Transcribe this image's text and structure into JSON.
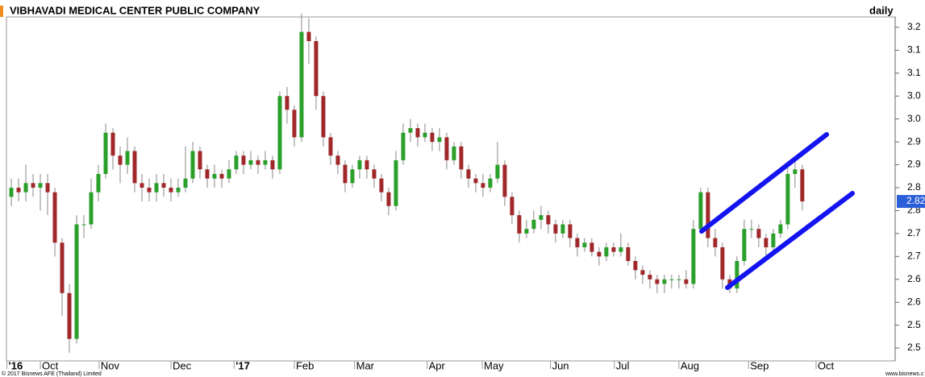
{
  "chart_data": {
    "type": "candlestick",
    "title": "VIBHAVADI MEDICAL CENTER PUBLIC COMPANY",
    "period": "daily",
    "footer_left": "© 2017 Bisnews AFE (Thailand) Limited",
    "footer_right": "www.bisnews.c",
    "last_price": 2.82,
    "up_color": "#2aa02a",
    "down_color": "#a0282a",
    "ylim": [
      2.472,
      3.228
    ],
    "yticks": [
      3.2,
      {
        "value": 3.15,
        "label": "3.1"
      },
      3.1,
      {
        "value": 3.05,
        "label": "3.0"
      },
      {
        "value": 3,
        "label": "3.0"
      },
      {
        "value": 2.95,
        "label": "2.9"
      },
      2.9,
      {
        "value": 2.85,
        "label": "2.8"
      },
      2.8,
      {
        "value": 2.75,
        "label": "2.7"
      },
      2.7,
      {
        "value": 2.65,
        "label": "2.6"
      },
      2.6,
      {
        "value": 2.55,
        "label": "2.5"
      },
      2.5
    ],
    "xlim": [
      -0.67,
      121.8
    ],
    "xticks": [
      {
        "value": -0.6,
        "label": "'16"
      },
      {
        "value": 4.0,
        "label": "Oct"
      },
      {
        "value": 12.1,
        "label": "Nov"
      },
      {
        "value": 22.0,
        "label": "Dec"
      },
      {
        "value": 30.7,
        "label": "'17"
      },
      {
        "value": 39.0,
        "label": "Feb"
      },
      {
        "value": 47.3,
        "label": "Mar"
      },
      {
        "value": 57.3,
        "label": "Apr"
      },
      {
        "value": 64.9,
        "label": "May"
      },
      {
        "value": 74.3,
        "label": "Jun"
      },
      {
        "value": 83.1,
        "label": "Jul"
      },
      {
        "value": 92.0,
        "label": "Aug"
      },
      {
        "value": 101.6,
        "label": "Sep"
      },
      {
        "value": 110.9,
        "label": "Oct"
      }
    ],
    "open": [
      2.83,
      2.85,
      2.84,
      2.86,
      2.85,
      2.86,
      2.84,
      2.73,
      2.62,
      2.52,
      2.77,
      2.77,
      2.84,
      2.88,
      2.97,
      2.92,
      2.9,
      2.93,
      2.86,
      2.85,
      2.84,
      2.86,
      2.85,
      2.84,
      2.85,
      2.87,
      2.93,
      2.89,
      2.87,
      2.88,
      2.87,
      2.89,
      2.92,
      2.9,
      2.91,
      2.9,
      2.91,
      2.89,
      3.05,
      3.02,
      2.96,
      3.19,
      3.17,
      3.05,
      2.96,
      2.92,
      2.9,
      2.86,
      2.89,
      2.91,
      2.89,
      2.87,
      2.84,
      2.81,
      2.91,
      2.97,
      2.98,
      2.96,
      2.97,
      2.95,
      2.96,
      2.91,
      2.94,
      2.89,
      2.87,
      2.86,
      2.85,
      2.87,
      2.9,
      2.83,
      2.79,
      2.75,
      2.76,
      2.78,
      2.79,
      2.77,
      2.75,
      2.77,
      2.74,
      2.72,
      2.73,
      2.71,
      2.7,
      2.72,
      2.71,
      2.72,
      2.69,
      2.67,
      2.66,
      2.65,
      2.64,
      2.65,
      2.65,
      2.65,
      2.64,
      2.76,
      2.84,
      2.74,
      2.72,
      2.65,
      2.63,
      2.69,
      2.76,
      2.76,
      2.74,
      2.72,
      2.75,
      2.77,
      2.88,
      2.89
    ],
    "high": [
      2.87,
      2.87,
      2.9,
      2.88,
      2.88,
      2.88,
      2.85,
      2.74,
      2.64,
      2.79,
      2.79,
      2.87,
      2.9,
      2.99,
      2.98,
      2.94,
      2.96,
      2.94,
      2.88,
      2.87,
      2.88,
      2.88,
      2.87,
      2.87,
      2.94,
      2.95,
      2.94,
      2.9,
      2.9,
      2.89,
      2.91,
      2.93,
      2.93,
      2.93,
      2.92,
      2.93,
      2.92,
      3.06,
      3.07,
      3.03,
      3.23,
      3.22,
      3.18,
      3.06,
      2.97,
      2.93,
      2.91,
      2.9,
      2.92,
      2.92,
      2.9,
      2.88,
      2.85,
      2.93,
      2.99,
      3.0,
      2.99,
      2.99,
      2.98,
      2.98,
      2.97,
      2.95,
      2.95,
      2.9,
      2.88,
      2.88,
      2.88,
      2.95,
      2.91,
      2.84,
      2.8,
      2.78,
      2.8,
      2.81,
      2.8,
      2.78,
      2.78,
      2.78,
      2.75,
      2.74,
      2.74,
      2.72,
      2.73,
      2.73,
      2.75,
      2.73,
      2.7,
      2.68,
      2.67,
      2.66,
      2.66,
      2.66,
      2.66,
      2.67,
      2.78,
      2.85,
      2.85,
      2.76,
      2.73,
      2.66,
      2.7,
      2.78,
      2.78,
      2.77,
      2.75,
      2.76,
      2.78,
      2.9,
      2.91,
      2.9
    ],
    "low": [
      2.81,
      2.82,
      2.82,
      2.83,
      2.8,
      2.79,
      2.7,
      2.57,
      2.49,
      2.51,
      2.74,
      2.76,
      2.82,
      2.87,
      2.89,
      2.86,
      2.88,
      2.84,
      2.82,
      2.82,
      2.82,
      2.83,
      2.82,
      2.83,
      2.84,
      2.86,
      2.87,
      2.85,
      2.85,
      2.85,
      2.86,
      2.88,
      2.88,
      2.89,
      2.88,
      2.89,
      2.87,
      2.88,
      2.99,
      2.94,
      2.95,
      3.12,
      3.02,
      2.94,
      2.9,
      2.88,
      2.84,
      2.85,
      2.87,
      2.87,
      2.85,
      2.82,
      2.79,
      2.8,
      2.9,
      2.95,
      2.94,
      2.95,
      2.93,
      2.93,
      2.89,
      2.9,
      2.87,
      2.85,
      2.84,
      2.83,
      2.84,
      2.86,
      2.81,
      2.77,
      2.73,
      2.74,
      2.75,
      2.76,
      2.75,
      2.73,
      2.74,
      2.72,
      2.7,
      2.71,
      2.7,
      2.68,
      2.69,
      2.7,
      2.7,
      2.68,
      2.65,
      2.64,
      2.63,
      2.62,
      2.62,
      2.63,
      2.63,
      2.63,
      2.63,
      2.75,
      2.72,
      2.7,
      2.63,
      2.62,
      2.62,
      2.68,
      2.74,
      2.72,
      2.7,
      2.71,
      2.74,
      2.76,
      2.85,
      2.8
    ],
    "close": [
      2.85,
      2.84,
      2.86,
      2.85,
      2.86,
      2.84,
      2.73,
      2.62,
      2.52,
      2.77,
      2.77,
      2.84,
      2.88,
      2.97,
      2.92,
      2.9,
      2.93,
      2.86,
      2.85,
      2.84,
      2.86,
      2.85,
      2.84,
      2.85,
      2.87,
      2.93,
      2.89,
      2.87,
      2.88,
      2.87,
      2.89,
      2.92,
      2.9,
      2.91,
      2.9,
      2.91,
      2.89,
      3.05,
      3.02,
      2.96,
      3.19,
      3.17,
      3.05,
      2.96,
      2.92,
      2.9,
      2.86,
      2.89,
      2.91,
      2.89,
      2.87,
      2.84,
      2.81,
      2.91,
      2.97,
      2.98,
      2.96,
      2.97,
      2.95,
      2.96,
      2.91,
      2.94,
      2.89,
      2.87,
      2.86,
      2.85,
      2.87,
      2.9,
      2.83,
      2.79,
      2.75,
      2.76,
      2.78,
      2.79,
      2.77,
      2.75,
      2.77,
      2.74,
      2.72,
      2.73,
      2.71,
      2.7,
      2.72,
      2.71,
      2.72,
      2.69,
      2.67,
      2.66,
      2.65,
      2.64,
      2.65,
      2.65,
      2.65,
      2.64,
      2.76,
      2.84,
      2.74,
      2.72,
      2.65,
      2.63,
      2.69,
      2.76,
      2.76,
      2.74,
      2.72,
      2.75,
      2.77,
      2.88,
      2.89,
      2.82
    ]
  }
}
